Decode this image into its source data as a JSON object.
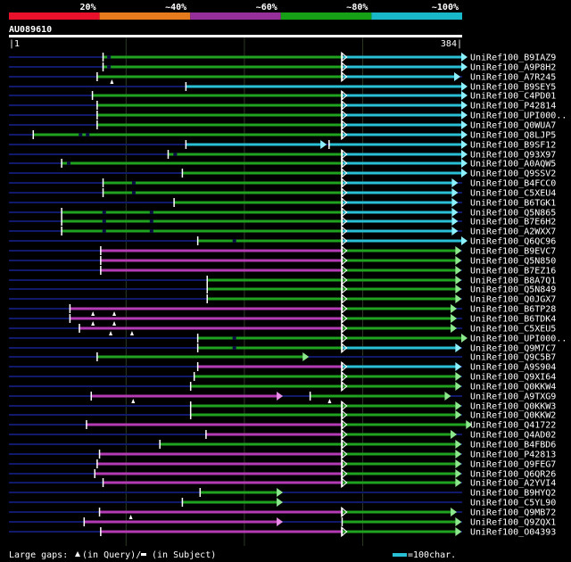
{
  "chart_data": {
    "type": "alignment-map",
    "title": "AU089610",
    "query_range": [
      1,
      384
    ],
    "scale_start_label": "|1",
    "scale_end_label": "384|",
    "identity_legend": [
      {
        "label": "20%",
        "color": "#e8102a"
      },
      {
        "label": "~40%",
        "color": "#e57b1c"
      },
      {
        "label": "~60%",
        "color": "#962f99"
      },
      {
        "label": "~80%",
        "color": "#15a015"
      },
      {
        "label": "~100%",
        "color": "#18b8c8"
      }
    ],
    "colors": {
      "thin_line": "#111a6a",
      "magenta": "#b43bb4",
      "green": "#1fa21f",
      "cyan": "#29c0d6",
      "arrow_magenta": "#e88ce8",
      "arrow_green": "#8de88d",
      "arrow_cyan": "#8df0ff",
      "gap": "#ffffff"
    },
    "footer": {
      "large_gaps_label": "Large gaps: ",
      "query_gap_text": "(in Query)/",
      "subject_gap_text": "(in Subject)",
      "scale_legend": "=100char."
    },
    "hits": [
      {
        "name": "UniRef100_B9IAZ9",
        "segs": [
          [
            80,
            282,
            "g",
            0
          ],
          [
            282,
            384,
            "c",
            1
          ]
        ],
        "qgaps": [],
        "sgaps": [
          84
        ]
      },
      {
        "name": "UniRef100_A9P8H2",
        "segs": [
          [
            80,
            282,
            "g",
            0
          ],
          [
            282,
            384,
            "c",
            1
          ]
        ],
        "qgaps": [],
        "sgaps": [
          84
        ]
      },
      {
        "name": "UniRef100_A7R245",
        "segs": [
          [
            75,
            282,
            "g",
            0
          ],
          [
            282,
            378,
            "c",
            1
          ]
        ],
        "qgaps": [
          88
        ],
        "sgaps": []
      },
      {
        "name": "UniRef100_B9SEY5",
        "segs": [
          [
            150,
            384,
            "c",
            1
          ]
        ],
        "qgaps": [],
        "sgaps": []
      },
      {
        "name": "UniRef100_C4PD01",
        "segs": [
          [
            71,
            282,
            "g",
            0
          ],
          [
            282,
            384,
            "c",
            1
          ]
        ],
        "qgaps": [],
        "sgaps": []
      },
      {
        "name": "UniRef100_P42814",
        "segs": [
          [
            75,
            282,
            "g",
            0
          ],
          [
            282,
            384,
            "c",
            1
          ]
        ],
        "qgaps": [],
        "sgaps": []
      },
      {
        "name": "UniRef100_UPI000..",
        "segs": [
          [
            75,
            282,
            "g",
            0
          ],
          [
            282,
            384,
            "c",
            1
          ]
        ],
        "qgaps": [],
        "sgaps": []
      },
      {
        "name": "UniRef100_Q0WUA7",
        "segs": [
          [
            75,
            282,
            "g",
            0
          ],
          [
            282,
            384,
            "c",
            1
          ]
        ],
        "qgaps": [],
        "sgaps": []
      },
      {
        "name": "UniRef100_Q8LJP5",
        "segs": [
          [
            21,
            282,
            "g",
            0
          ],
          [
            282,
            384,
            "c",
            1
          ]
        ],
        "qgaps": [],
        "sgaps": [
          60,
          66
        ]
      },
      {
        "name": "UniRef100_B9SF12",
        "segs": [
          [
            150,
            265,
            "c",
            1
          ],
          [
            271,
            384,
            "c",
            1
          ]
        ],
        "qgaps": [],
        "sgaps": []
      },
      {
        "name": "UniRef100_Q93X97",
        "segs": [
          [
            135,
            282,
            "g",
            0
          ],
          [
            282,
            384,
            "c",
            1
          ]
        ],
        "qgaps": [],
        "sgaps": [
          140
        ]
      },
      {
        "name": "UniRef100_A0AQW5",
        "segs": [
          [
            45,
            282,
            "g",
            0
          ],
          [
            282,
            384,
            "c",
            1
          ]
        ],
        "qgaps": [],
        "sgaps": [
          50
        ]
      },
      {
        "name": "UniRef100_Q9SSV2",
        "segs": [
          [
            147,
            282,
            "g",
            0
          ],
          [
            282,
            384,
            "c",
            1
          ]
        ],
        "qgaps": [],
        "sgaps": []
      },
      {
        "name": "UniRef100_B4FCC0",
        "segs": [
          [
            80,
            282,
            "g",
            0
          ],
          [
            282,
            376,
            "c",
            1
          ]
        ],
        "qgaps": [],
        "sgaps": [
          105
        ]
      },
      {
        "name": "UniRef100_C5XEU4",
        "segs": [
          [
            80,
            282,
            "g",
            0
          ],
          [
            282,
            376,
            "c",
            1
          ]
        ],
        "qgaps": [],
        "sgaps": [
          105
        ]
      },
      {
        "name": "UniRef100_B6TGK1",
        "segs": [
          [
            140,
            282,
            "g",
            0
          ],
          [
            282,
            376,
            "c",
            1
          ]
        ],
        "qgaps": [],
        "sgaps": []
      },
      {
        "name": "UniRef100_Q5N865",
        "segs": [
          [
            45,
            282,
            "g",
            0
          ],
          [
            282,
            376,
            "c",
            1
          ]
        ],
        "qgaps": [],
        "sgaps": [
          80,
          120
        ]
      },
      {
        "name": "UniRef100_B7E6H2",
        "segs": [
          [
            45,
            282,
            "g",
            0
          ],
          [
            282,
            376,
            "c",
            1
          ]
        ],
        "qgaps": [],
        "sgaps": [
          80,
          120
        ]
      },
      {
        "name": "UniRef100_A2WXX7",
        "segs": [
          [
            45,
            282,
            "g",
            0
          ],
          [
            282,
            376,
            "c",
            1
          ]
        ],
        "qgaps": [],
        "sgaps": [
          80,
          120
        ]
      },
      {
        "name": "UniRef100_Q6QC96",
        "segs": [
          [
            160,
            282,
            "g",
            0
          ],
          [
            282,
            384,
            "c",
            1
          ]
        ],
        "qgaps": [],
        "sgaps": [
          190
        ]
      },
      {
        "name": "UniRef100_B9EVC7",
        "segs": [
          [
            78,
            282,
            "m",
            0
          ],
          [
            282,
            379,
            "g",
            1
          ]
        ],
        "qgaps": [],
        "sgaps": []
      },
      {
        "name": "UniRef100_Q5N850",
        "segs": [
          [
            78,
            282,
            "m",
            0
          ],
          [
            282,
            379,
            "g",
            1
          ]
        ],
        "qgaps": [],
        "sgaps": []
      },
      {
        "name": "UniRef100_B7EZ16",
        "segs": [
          [
            78,
            282,
            "m",
            0
          ],
          [
            282,
            379,
            "g",
            1
          ]
        ],
        "qgaps": [],
        "sgaps": []
      },
      {
        "name": "UniRef100_B8A7Q1",
        "segs": [
          [
            168,
            282,
            "g",
            0
          ],
          [
            282,
            379,
            "g",
            1
          ]
        ],
        "qgaps": [],
        "sgaps": []
      },
      {
        "name": "UniRef100_Q5N849",
        "segs": [
          [
            168,
            282,
            "g",
            0
          ],
          [
            282,
            379,
            "g",
            1
          ]
        ],
        "qgaps": [],
        "sgaps": []
      },
      {
        "name": "UniRef100_Q0JGX7",
        "segs": [
          [
            168,
            282,
            "g",
            0
          ],
          [
            282,
            379,
            "g",
            1
          ]
        ],
        "qgaps": [],
        "sgaps": []
      },
      {
        "name": "UniRef100_B6TP28",
        "segs": [
          [
            52,
            282,
            "m",
            0
          ],
          [
            282,
            375,
            "g",
            1
          ]
        ],
        "qgaps": [
          72,
          90
        ],
        "sgaps": []
      },
      {
        "name": "UniRef100_B6TDK4",
        "segs": [
          [
            52,
            282,
            "m",
            0
          ],
          [
            282,
            375,
            "g",
            1
          ]
        ],
        "qgaps": [
          72,
          90
        ],
        "sgaps": []
      },
      {
        "name": "UniRef100_C5XEU5",
        "segs": [
          [
            60,
            282,
            "m",
            0
          ],
          [
            282,
            375,
            "g",
            1
          ]
        ],
        "qgaps": [
          87,
          105
        ],
        "sgaps": []
      },
      {
        "name": "UniRef100_UPI000..",
        "segs": [
          [
            160,
            282,
            "g",
            0
          ],
          [
            282,
            384,
            "g",
            1
          ]
        ],
        "qgaps": [],
        "sgaps": [
          190
        ]
      },
      {
        "name": "UniRef100_Q9M7C7",
        "segs": [
          [
            160,
            282,
            "g",
            0
          ],
          [
            282,
            379,
            "c",
            1
          ]
        ],
        "qgaps": [],
        "sgaps": [
          190
        ]
      },
      {
        "name": "UniRef100_Q9C5B7",
        "segs": [
          [
            75,
            250,
            "g",
            1
          ]
        ],
        "qgaps": [],
        "sgaps": []
      },
      {
        "name": "UniRef100_A9S904",
        "segs": [
          [
            160,
            282,
            "m",
            0
          ],
          [
            282,
            379,
            "c",
            1
          ]
        ],
        "qgaps": [],
        "sgaps": []
      },
      {
        "name": "UniRef100_Q9XI64",
        "segs": [
          [
            157,
            282,
            "g",
            0
          ],
          [
            282,
            379,
            "g",
            1
          ]
        ],
        "qgaps": [],
        "sgaps": []
      },
      {
        "name": "UniRef100_Q0KKW4",
        "segs": [
          [
            154,
            282,
            "g",
            0
          ],
          [
            282,
            379,
            "g",
            1
          ]
        ],
        "qgaps": [],
        "sgaps": []
      },
      {
        "name": "UniRef100_A9TXG9",
        "segs": [
          [
            70,
            228,
            "m",
            1
          ],
          [
            255,
            370,
            "g",
            1
          ]
        ],
        "qgaps": [
          106,
          272
        ],
        "sgaps": []
      },
      {
        "name": "UniRef100_Q0KKW3",
        "segs": [
          [
            154,
            282,
            "g",
            0
          ],
          [
            282,
            379,
            "g",
            1
          ]
        ],
        "qgaps": [],
        "sgaps": []
      },
      {
        "name": "UniRef100_Q0KKW2",
        "segs": [
          [
            154,
            282,
            "g",
            0
          ],
          [
            282,
            379,
            "g",
            1
          ]
        ],
        "qgaps": [],
        "sgaps": []
      },
      {
        "name": "UniRef100_Q41722",
        "segs": [
          [
            66,
            282,
            "m",
            0
          ],
          [
            282,
            388,
            "g",
            1
          ]
        ],
        "qgaps": [],
        "sgaps": []
      },
      {
        "name": "UniRef100_Q4AD02",
        "segs": [
          [
            167,
            282,
            "m",
            0
          ],
          [
            282,
            375,
            "g",
            1
          ]
        ],
        "qgaps": [],
        "sgaps": []
      },
      {
        "name": "UniRef100_B4FBD6",
        "segs": [
          [
            128,
            282,
            "g",
            0
          ],
          [
            282,
            379,
            "g",
            1
          ]
        ],
        "qgaps": [],
        "sgaps": []
      },
      {
        "name": "UniRef100_P42813",
        "segs": [
          [
            77,
            282,
            "m",
            0
          ],
          [
            282,
            379,
            "g",
            1
          ]
        ],
        "qgaps": [],
        "sgaps": []
      },
      {
        "name": "UniRef100_Q9FEG7",
        "segs": [
          [
            75,
            282,
            "m",
            0
          ],
          [
            282,
            379,
            "g",
            1
          ]
        ],
        "qgaps": [],
        "sgaps": []
      },
      {
        "name": "UniRef100_Q6QR26",
        "segs": [
          [
            73,
            282,
            "m",
            0
          ],
          [
            282,
            379,
            "g",
            1
          ]
        ],
        "qgaps": [],
        "sgaps": []
      },
      {
        "name": "UniRef100_A2YVI4",
        "segs": [
          [
            80,
            282,
            "m",
            0
          ],
          [
            282,
            379,
            "g",
            1
          ]
        ],
        "qgaps": [],
        "sgaps": []
      },
      {
        "name": "UniRef100_B9HYQ2",
        "segs": [
          [
            162,
            228,
            "g",
            1
          ]
        ],
        "qgaps": [],
        "sgaps": []
      },
      {
        "name": "UniRef100_C5YL90",
        "segs": [
          [
            147,
            228,
            "g",
            1
          ]
        ],
        "qgaps": [],
        "sgaps": []
      },
      {
        "name": "UniRef100_Q9MB72",
        "segs": [
          [
            77,
            282,
            "m",
            0
          ],
          [
            282,
            375,
            "g",
            1
          ]
        ],
        "qgaps": [
          104
        ],
        "sgaps": []
      },
      {
        "name": "UniRef100_Q9ZQX1",
        "segs": [
          [
            64,
            228,
            "m",
            1
          ],
          [
            282,
            379,
            "g",
            1
          ]
        ],
        "qgaps": [],
        "sgaps": []
      },
      {
        "name": "UniRef100_O04393",
        "segs": [
          [
            78,
            282,
            "m",
            0
          ],
          [
            282,
            379,
            "g",
            1
          ]
        ],
        "qgaps": [],
        "sgaps": []
      }
    ]
  }
}
